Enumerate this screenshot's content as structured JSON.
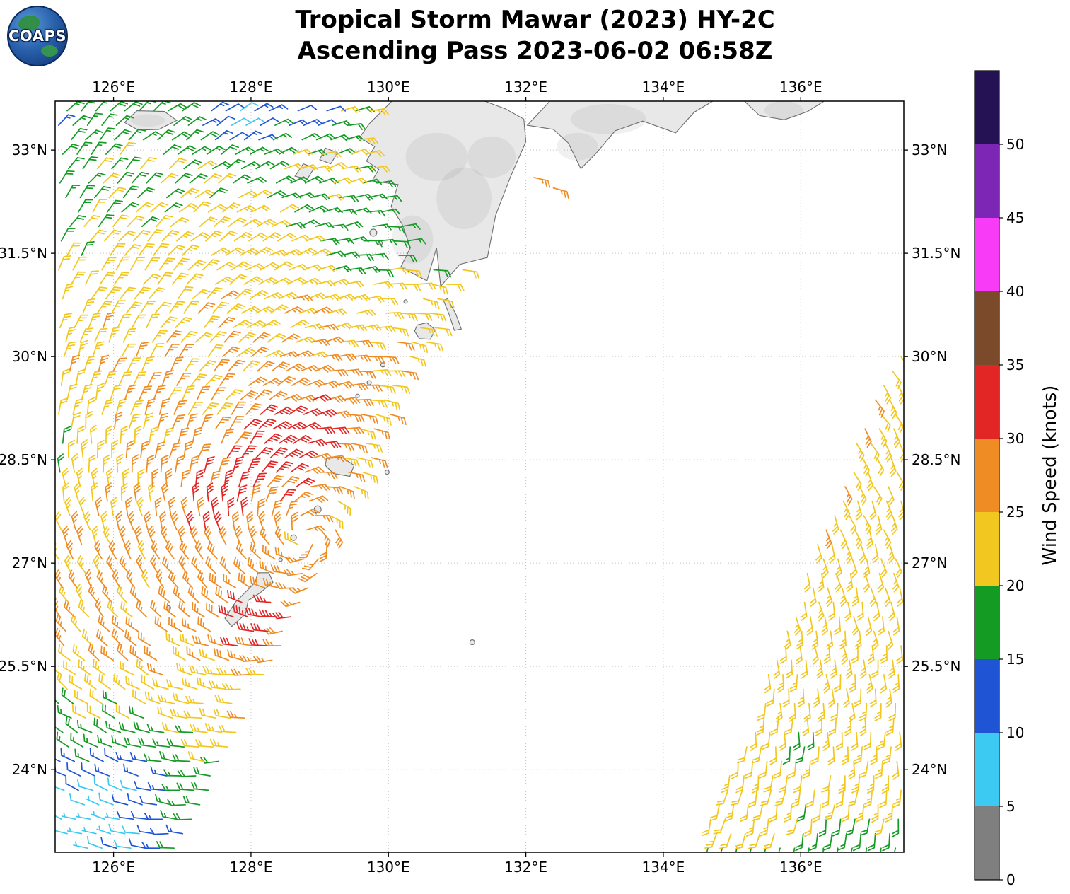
{
  "header": {
    "title_line1": "Tropical Storm Mawar (2023) HY-2C",
    "title_line2": "Ascending Pass 2023-06-02 06:58Z",
    "logo_text": "COAPS"
  },
  "chart_data": {
    "type": "wind_barb_map",
    "title": "Tropical Storm Mawar (2023) HY-2C",
    "subtitle": "Ascending Pass 2023-06-02 06:58Z",
    "satellite": "HY-2C",
    "pass_type": "Ascending",
    "datetime_utc": "2023-06-02 06:58Z",
    "lon_range": [
      125.15,
      137.5
    ],
    "lat_range": [
      22.8,
      33.71
    ],
    "x_ticks": {
      "values": [
        126,
        128,
        130,
        132,
        134,
        136
      ],
      "labels": [
        "126°E",
        "128°E",
        "130°E",
        "132°E",
        "134°E",
        "136°E"
      ]
    },
    "y_ticks": {
      "values": [
        24,
        25.5,
        27,
        28.5,
        30,
        31.5,
        33
      ],
      "labels": [
        "24°N",
        "25.5°N",
        "27°N",
        "28.5°N",
        "30°N",
        "31.5°N",
        "33°N"
      ]
    },
    "grid": true,
    "colorbar": {
      "label": "Wind Speed (knots)",
      "tick_labels": [
        "0",
        "5",
        "10",
        "15",
        "20",
        "25",
        "30",
        "35",
        "40",
        "45",
        "50"
      ],
      "bin_edges_knots": [
        0,
        5,
        10,
        15,
        20,
        25,
        30,
        35,
        40,
        45,
        50
      ],
      "colors_low_to_high": [
        "#7f7f7f",
        "#3cc9f2",
        "#1f55d4",
        "#149b24",
        "#f2c71f",
        "#ef8d24",
        "#e22626",
        "#7a4a2b",
        "#f73bf7",
        "#7d26b5",
        "#241254"
      ]
    },
    "storm": {
      "center_lon": 128.8,
      "center_lat": 27.4,
      "rotation": "counterclockwise",
      "inflow_deg": 20
    },
    "barb_grid_deg": 0.21,
    "swaths": [
      {
        "name": "left",
        "edge_lon_at_lat23": 127.12,
        "edge_slope_lon_per_lat": 0.48,
        "base_speed_kt": 23.5,
        "speed_bumps": [
          {
            "lon": 128.35,
            "lat": 28.75,
            "amp": 8.5,
            "major": 1.5,
            "minor": 0.6,
            "angle": 45
          },
          {
            "lon": 128.05,
            "lat": 26.15,
            "amp": 9,
            "major": 0.55,
            "minor": 0.42,
            "angle": 20
          },
          {
            "lon": 127.6,
            "lat": 27.4,
            "amp": 3.5,
            "major": 2.6,
            "minor": 2.2,
            "angle": 0
          },
          {
            "lon": 125.2,
            "lat": 33.6,
            "amp": -7,
            "major": 2.0,
            "minor": 2.0,
            "angle": 0
          },
          {
            "lon": 127.9,
            "lat": 33.6,
            "amp": -11,
            "major": 0.8,
            "minor": 0.8,
            "angle": 0
          },
          {
            "lon": 128.95,
            "lat": 33.55,
            "amp": -12,
            "major": 0.35,
            "minor": 0.35,
            "angle": 0
          },
          {
            "lon": 130.2,
            "lat": 32.2,
            "amp": -6,
            "major": 1.0,
            "minor": 1.0,
            "angle": 0
          },
          {
            "lon": 128.9,
            "lat": 32.0,
            "amp": -5,
            "major": 1.3,
            "minor": 0.5,
            "angle": -40
          },
          {
            "lon": 125.15,
            "lat": 22.9,
            "amp": -14,
            "major": 1.5,
            "minor": 1.5,
            "angle": 0
          },
          {
            "lon": 126.4,
            "lat": 23.6,
            "amp": -7,
            "major": 1.2,
            "minor": 1.2,
            "angle": 0
          },
          {
            "lon": 125.2,
            "lat": 28.5,
            "amp": -4,
            "major": 0.9,
            "minor": 0.9,
            "angle": 0
          }
        ]
      },
      {
        "name": "right",
        "edge_lon_at_lat23": 134.58,
        "edge_slope_lon_per_lat": 0.387,
        "base_speed_kt": 22.5,
        "speed_bumps": [
          {
            "lon": 136.1,
            "lat": 28.6,
            "amp": 6.5,
            "major": 2.0,
            "minor": 0.5,
            "angle": 69
          },
          {
            "lon": 135.9,
            "lat": 22.85,
            "amp": -5.5,
            "major": 1.9,
            "minor": 0.42,
            "angle": 8
          },
          {
            "lon": 135.85,
            "lat": 24.35,
            "amp": -4.5,
            "major": 0.3,
            "minor": 0.3,
            "angle": 0
          }
        ]
      }
    ],
    "extra_barbs": [
      {
        "lon": 132.12,
        "lat": 32.6,
        "speed_kt": 27
      },
      {
        "lon": 132.4,
        "lat": 32.45,
        "speed_kt": 26
      }
    ],
    "coastlines": {
      "polygons": [
        {
          "name": "kyushu",
          "mask": true,
          "pts": [
            [
              130.05,
              33.71
            ],
            [
              129.72,
              33.38
            ],
            [
              129.58,
              33.18
            ],
            [
              129.8,
              33.05
            ],
            [
              129.68,
              32.84
            ],
            [
              129.86,
              32.72
            ],
            [
              129.76,
              32.55
            ],
            [
              130.14,
              32.5
            ],
            [
              130.04,
              32.18
            ],
            [
              130.2,
              31.92
            ],
            [
              130.32,
              31.58
            ],
            [
              130.18,
              31.3
            ],
            [
              130.56,
              31.1
            ],
            [
              130.7,
              31.58
            ],
            [
              130.76,
              31.02
            ],
            [
              131.04,
              31.34
            ],
            [
              131.44,
              31.44
            ],
            [
              131.56,
              32.05
            ],
            [
              131.78,
              32.62
            ],
            [
              132.0,
              33.12
            ],
            [
              131.97,
              33.45
            ],
            [
              131.7,
              33.6
            ],
            [
              131.4,
              33.71
            ]
          ]
        },
        {
          "name": "shikoku",
          "mask": true,
          "pts": [
            [
              132.35,
              33.71
            ],
            [
              132.02,
              33.36
            ],
            [
              132.4,
              33.3
            ],
            [
              132.62,
              33.1
            ],
            [
              132.8,
              32.73
            ],
            [
              133.02,
              32.95
            ],
            [
              133.3,
              33.28
            ],
            [
              133.7,
              33.42
            ],
            [
              134.18,
              33.25
            ],
            [
              134.45,
              33.55
            ],
            [
              134.72,
              33.71
            ]
          ]
        },
        {
          "name": "kii-peninsula",
          "mask": true,
          "pts": [
            [
              135.18,
              33.71
            ],
            [
              135.4,
              33.5
            ],
            [
              135.76,
              33.44
            ],
            [
              136.1,
              33.56
            ],
            [
              136.34,
              33.71
            ]
          ]
        },
        {
          "name": "jeju",
          "mask": true,
          "pts": [
            [
              126.16,
              33.4
            ],
            [
              126.36,
              33.29
            ],
            [
              126.66,
              33.3
            ],
            [
              126.92,
              33.43
            ],
            [
              126.74,
              33.56
            ],
            [
              126.34,
              33.57
            ]
          ]
        },
        {
          "name": "goto-1",
          "mask": false,
          "pts": [
            [
              128.64,
              32.62
            ],
            [
              128.82,
              32.58
            ],
            [
              128.92,
              32.74
            ],
            [
              128.76,
              32.8
            ]
          ]
        },
        {
          "name": "goto-2",
          "mask": false,
          "pts": [
            [
              129.0,
              32.86
            ],
            [
              129.16,
              32.8
            ],
            [
              129.26,
              32.96
            ],
            [
              129.08,
              33.03
            ]
          ]
        },
        {
          "name": "tanegashima",
          "mask": false,
          "pts": [
            [
              130.86,
              30.84
            ],
            [
              130.98,
              30.62
            ],
            [
              131.06,
              30.4
            ],
            [
              130.96,
              30.38
            ],
            [
              130.88,
              30.62
            ],
            [
              130.8,
              30.82
            ]
          ]
        },
        {
          "name": "yakushima",
          "mask": false,
          "pts": [
            [
              130.42,
              30.46
            ],
            [
              130.56,
              30.49
            ],
            [
              130.68,
              30.39
            ],
            [
              130.61,
              30.25
            ],
            [
              130.45,
              30.26
            ],
            [
              130.38,
              30.37
            ]
          ]
        },
        {
          "name": "amami-oshima",
          "mask": false,
          "pts": [
            [
              129.1,
              28.52
            ],
            [
              129.32,
              28.54
            ],
            [
              129.5,
              28.42
            ],
            [
              129.44,
              28.26
            ],
            [
              129.2,
              28.3
            ],
            [
              129.08,
              28.42
            ]
          ]
        },
        {
          "name": "okinawa",
          "mask": false,
          "pts": [
            [
              128.26,
              26.86
            ],
            [
              128.32,
              26.72
            ],
            [
              128.12,
              26.56
            ],
            [
              127.96,
              26.46
            ],
            [
              127.92,
              26.26
            ],
            [
              127.72,
              26.08
            ],
            [
              127.62,
              26.2
            ],
            [
              127.78,
              26.44
            ],
            [
              127.9,
              26.56
            ],
            [
              128.06,
              26.72
            ],
            [
              128.1,
              26.86
            ]
          ]
        }
      ],
      "islands": [
        {
          "lon": 129.92,
          "lat": 29.88,
          "r": 3
        },
        {
          "lon": 129.72,
          "lat": 29.62,
          "r": 3
        },
        {
          "lon": 129.55,
          "lat": 29.43,
          "r": 2.5
        },
        {
          "lon": 129.98,
          "lat": 28.32,
          "r": 3
        },
        {
          "lon": 128.97,
          "lat": 27.78,
          "r": 5
        },
        {
          "lon": 128.62,
          "lat": 27.37,
          "r": 4
        },
        {
          "lon": 128.43,
          "lat": 27.05,
          "r": 2.5
        },
        {
          "lon": 131.22,
          "lat": 25.85,
          "r": 3.5
        },
        {
          "lon": 126.8,
          "lat": 26.35,
          "r": 3
        },
        {
          "lon": 129.78,
          "lat": 31.8,
          "r": 5
        },
        {
          "lon": 129.88,
          "lat": 31.65,
          "r": 3
        },
        {
          "lon": 130.25,
          "lat": 30.8,
          "r": 2.5
        }
      ],
      "relief": [
        {
          "lon": 130.7,
          "lat": 32.9,
          "rx": 0.45,
          "ry": 0.35
        },
        {
          "lon": 131.1,
          "lat": 32.3,
          "rx": 0.4,
          "ry": 0.45
        },
        {
          "lon": 130.35,
          "lat": 31.7,
          "rx": 0.3,
          "ry": 0.35
        },
        {
          "lon": 131.5,
          "lat": 32.9,
          "rx": 0.35,
          "ry": 0.3
        },
        {
          "lon": 133.2,
          "lat": 33.45,
          "rx": 0.55,
          "ry": 0.22
        },
        {
          "lon": 132.75,
          "lat": 33.05,
          "rx": 0.3,
          "ry": 0.2
        },
        {
          "lon": 135.75,
          "lat": 33.58,
          "rx": 0.28,
          "ry": 0.13
        },
        {
          "lon": 126.5,
          "lat": 33.43,
          "rx": 0.25,
          "ry": 0.09
        }
      ]
    }
  }
}
